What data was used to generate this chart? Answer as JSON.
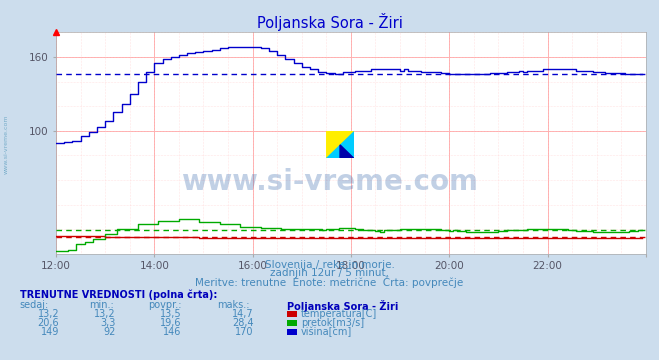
{
  "title": "Poljanska Sora - Žiri",
  "bg_color": "#ccdded",
  "plot_bg_color": "#ffffff",
  "title_color": "#0000cc",
  "text_color": "#4488bb",
  "bold_text_color": "#0000bb",
  "watermark": "www.si-vreme.com",
  "subtitle1": "Slovenija / reke in morje.",
  "subtitle2": "zadnjih 12ur / 5 minut.",
  "subtitle3": "Meritve: trenutne  Enote: metrične  Črta: povprečje",
  "table_header": "TRENUTNE VREDNOSTI (polna črta):",
  "table_cols": [
    "sedaj:",
    "min.:",
    "povpr.:",
    "maks.:"
  ],
  "table_station": "Poljanska Sora - Žiri",
  "table_data": [
    {
      "sedaj": "13,2",
      "min": "13,2",
      "povpr": "13,5",
      "maks": "14,7",
      "color": "#cc0000",
      "label": "temperatura[C]"
    },
    {
      "sedaj": "20,6",
      "min": "3,3",
      "povpr": "19,6",
      "maks": "28,4",
      "color": "#00aa00",
      "label": "pretok[m3/s]"
    },
    {
      "sedaj": "149",
      "min": "92",
      "povpr": "146",
      "maks": "170",
      "color": "#0000cc",
      "label": "višina[cm]"
    }
  ],
  "avg_temp": 13.5,
  "avg_pretok": 19.6,
  "avg_visina": 146,
  "temp_color": "#cc0000",
  "pretok_color": "#00aa00",
  "visina_color": "#0000cc",
  "xlim": [
    0,
    144
  ],
  "ylim": [
    0,
    180
  ],
  "ytick_vals": [
    100,
    160
  ],
  "xtick_labels": [
    "12:00",
    "14:00",
    "16:00",
    "18:00",
    "20:00",
    "22:00"
  ],
  "n_points": 144
}
